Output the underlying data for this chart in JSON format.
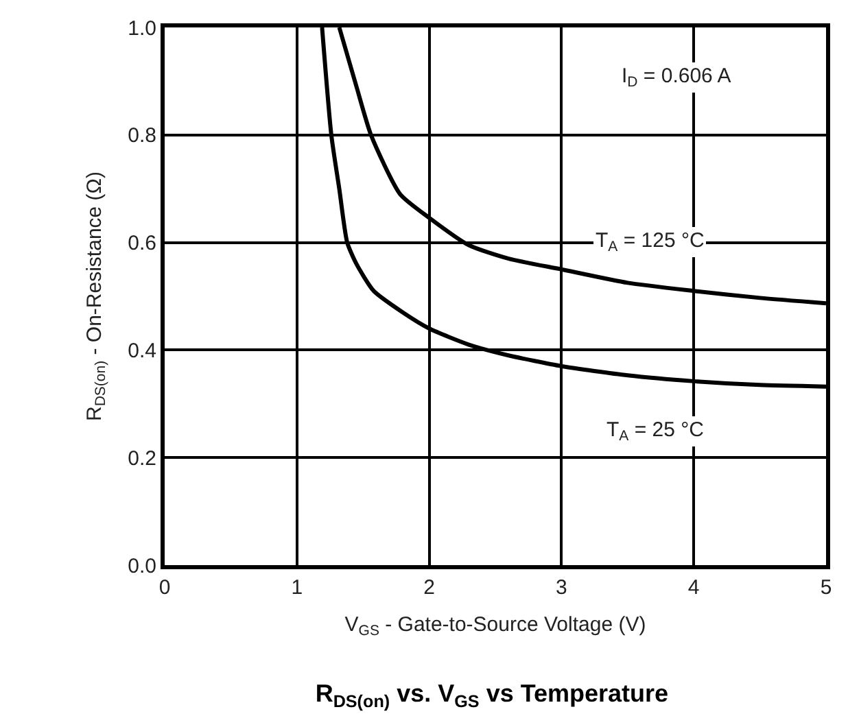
{
  "chart_data": {
    "type": "line",
    "title": "R$_{DS(on)}$ vs. V$_{GS}$ vs Temperature",
    "xlabel": "V$_{GS}$ - Gate-to-Source Voltage (V)",
    "ylabel": "R$_{DS(on)}$ - On-Resistance (Ω)",
    "series": [
      {
        "name": "T$_{A}$ = 125 °C",
        "color": "#000000",
        "x": [
          1.32,
          1.45,
          1.56,
          1.78,
          2.0,
          2.3,
          2.6,
          3.0,
          3.5,
          4.0,
          4.5,
          5.0
        ],
        "values": [
          1.0,
          0.89,
          0.8,
          0.69,
          0.646,
          0.595,
          0.57,
          0.55,
          0.525,
          0.51,
          0.497,
          0.487
        ]
      },
      {
        "name": "T$_{A}$ = 25 °C",
        "color": "#000000",
        "x": [
          1.19,
          1.26,
          1.32,
          1.38,
          1.45,
          1.58,
          1.8,
          2.0,
          2.3,
          2.6,
          3.0,
          3.5,
          4.0,
          4.5,
          5.0
        ],
        "values": [
          1.0,
          0.8,
          0.7,
          0.6,
          0.56,
          0.51,
          0.47,
          0.44,
          0.41,
          0.39,
          0.37,
          0.353,
          0.342,
          0.335,
          0.332
        ]
      }
    ],
    "annotations": [
      "I$_{D}$ = 0.606 A"
    ],
    "xlim": [
      0,
      5
    ],
    "xticks": [
      0,
      1,
      2,
      3,
      4,
      5
    ],
    "ylim": [
      0,
      1.0
    ],
    "yticks": [
      {
        "value": 0,
        "label": "0.0"
      },
      {
        "value": 0.2,
        "label": "0.2"
      },
      {
        "value": 0.4,
        "label": "0.4"
      },
      {
        "value": 0.6,
        "label": "0.6"
      },
      {
        "value": 0.8,
        "label": "0.8"
      },
      {
        "value": 1.0,
        "label": "1.0"
      }
    ],
    "grid": true,
    "legend": false,
    "line_style": "solid",
    "marker": "none"
  }
}
